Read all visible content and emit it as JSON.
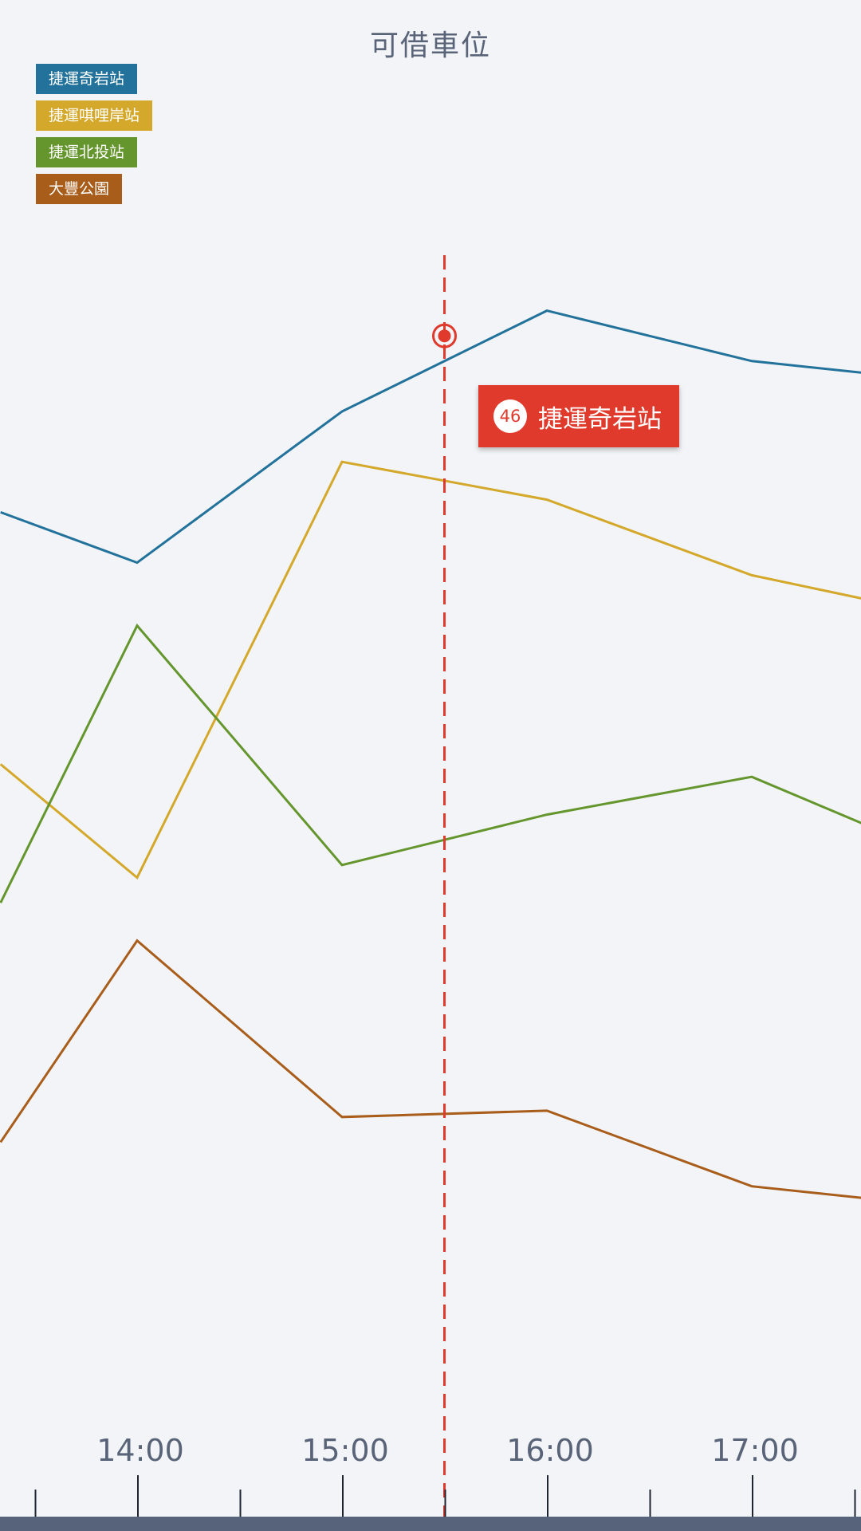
{
  "chart_data": {
    "type": "line",
    "title": "可借車位",
    "x": [
      "13:20",
      "14:00",
      "15:00",
      "16:00",
      "17:00",
      "17:35"
    ],
    "x_tick_labels": [
      "14:00",
      "15:00",
      "16:00",
      "17:00"
    ],
    "series": [
      {
        "name": "捷運奇岩站",
        "color": "#22729b",
        "values": [
          32,
          28,
          40,
          48,
          44,
          43
        ]
      },
      {
        "name": "捷運唭哩岸站",
        "color": "#d4a82a",
        "values": [
          12,
          3,
          36,
          33,
          27,
          25
        ]
      },
      {
        "name": "捷運北投站",
        "color": "#65962d",
        "values": [
          1,
          23,
          4,
          8,
          11,
          7
        ]
      },
      {
        "name": "大豐公園",
        "color": "#a95d1b",
        "values": [
          -18,
          -2,
          -16,
          -15.5,
          -21.5,
          -22.5
        ]
      }
    ],
    "ylim": [
      -40,
      60
    ],
    "grid": false,
    "legend_position": "top-left",
    "cursor": {
      "x": "15:30",
      "series": "捷運奇岩站",
      "value": 46
    }
  },
  "colors": {
    "cursor": "#df3a2c",
    "axis_text": "#5a6478",
    "background": "#f2f4f8"
  },
  "tooltip": {
    "value": "46",
    "label": "捷運奇岩站"
  }
}
